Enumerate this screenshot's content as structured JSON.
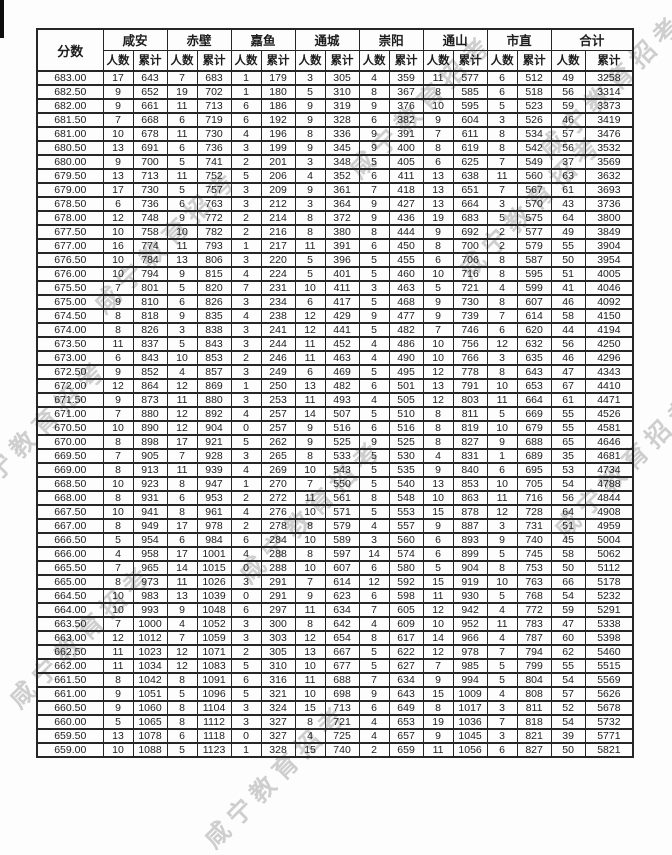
{
  "page": {
    "watermark_text": "咸宁教育招考"
  },
  "colors": {
    "ink": "#1c1c1c",
    "table_border": "#262626",
    "watermark": "#8f8f8f",
    "page_bg": "#fdfdfd"
  },
  "table": {
    "score_header": "分数",
    "regions": [
      "咸安",
      "赤壁",
      "嘉鱼",
      "通城",
      "崇阳",
      "通山",
      "市直",
      "合计"
    ],
    "sub_headers": {
      "count": "人数",
      "cumulative": "累计"
    },
    "rows": [
      [
        "683.00",
        17,
        643,
        7,
        683,
        1,
        179,
        3,
        305,
        4,
        359,
        11,
        577,
        6,
        512,
        49,
        3258
      ],
      [
        "682.50",
        9,
        652,
        19,
        702,
        1,
        180,
        5,
        310,
        8,
        367,
        8,
        585,
        6,
        518,
        56,
        3314
      ],
      [
        "682.00",
        9,
        661,
        11,
        713,
        6,
        186,
        9,
        319,
        9,
        376,
        10,
        595,
        5,
        523,
        59,
        3373
      ],
      [
        "681.50",
        7,
        668,
        6,
        719,
        6,
        192,
        9,
        328,
        6,
        382,
        9,
        604,
        3,
        526,
        46,
        3419
      ],
      [
        "681.00",
        10,
        678,
        11,
        730,
        4,
        196,
        8,
        336,
        9,
        391,
        7,
        611,
        8,
        534,
        57,
        3476
      ],
      [
        "680.50",
        13,
        691,
        6,
        736,
        3,
        199,
        9,
        345,
        9,
        400,
        8,
        619,
        8,
        542,
        56,
        3532
      ],
      [
        "680.00",
        9,
        700,
        5,
        741,
        2,
        201,
        3,
        348,
        5,
        405,
        6,
        625,
        7,
        549,
        37,
        3569
      ],
      [
        "679.50",
        13,
        713,
        11,
        752,
        5,
        206,
        4,
        352,
        6,
        411,
        13,
        638,
        11,
        560,
        63,
        3632
      ],
      [
        "679.00",
        17,
        730,
        5,
        757,
        3,
        209,
        9,
        361,
        7,
        418,
        13,
        651,
        7,
        567,
        61,
        3693
      ],
      [
        "678.50",
        6,
        736,
        6,
        763,
        3,
        212,
        3,
        364,
        9,
        427,
        13,
        664,
        3,
        570,
        43,
        3736
      ],
      [
        "678.00",
        12,
        748,
        9,
        772,
        2,
        214,
        8,
        372,
        9,
        436,
        19,
        683,
        5,
        575,
        64,
        3800
      ],
      [
        "677.50",
        10,
        758,
        10,
        782,
        2,
        216,
        8,
        380,
        8,
        444,
        9,
        692,
        2,
        577,
        49,
        3849
      ],
      [
        "677.00",
        16,
        774,
        11,
        793,
        1,
        217,
        11,
        391,
        6,
        450,
        8,
        700,
        2,
        579,
        55,
        3904
      ],
      [
        "676.50",
        10,
        784,
        13,
        806,
        3,
        220,
        5,
        396,
        5,
        455,
        6,
        706,
        8,
        587,
        50,
        3954
      ],
      [
        "676.00",
        10,
        794,
        9,
        815,
        4,
        224,
        5,
        401,
        5,
        460,
        10,
        716,
        8,
        595,
        51,
        4005
      ],
      [
        "675.50",
        7,
        801,
        5,
        820,
        7,
        231,
        10,
        411,
        3,
        463,
        5,
        721,
        4,
        599,
        41,
        4046
      ],
      [
        "675.00",
        9,
        810,
        6,
        826,
        3,
        234,
        6,
        417,
        5,
        468,
        9,
        730,
        8,
        607,
        46,
        4092
      ],
      [
        "674.50",
        8,
        818,
        9,
        835,
        4,
        238,
        12,
        429,
        9,
        477,
        9,
        739,
        7,
        614,
        58,
        4150
      ],
      [
        "674.00",
        8,
        826,
        3,
        838,
        3,
        241,
        12,
        441,
        5,
        482,
        7,
        746,
        6,
        620,
        44,
        4194
      ],
      [
        "673.50",
        11,
        837,
        5,
        843,
        3,
        244,
        11,
        452,
        4,
        486,
        10,
        756,
        12,
        632,
        56,
        4250
      ],
      [
        "673.00",
        6,
        843,
        10,
        853,
        2,
        246,
        11,
        463,
        4,
        490,
        10,
        766,
        3,
        635,
        46,
        4296
      ],
      [
        "672.50",
        9,
        852,
        4,
        857,
        3,
        249,
        6,
        469,
        5,
        495,
        12,
        778,
        8,
        643,
        47,
        4343
      ],
      [
        "672.00",
        12,
        864,
        12,
        869,
        1,
        250,
        13,
        482,
        6,
        501,
        13,
        791,
        10,
        653,
        67,
        4410
      ],
      [
        "671.50",
        9,
        873,
        11,
        880,
        3,
        253,
        11,
        493,
        4,
        505,
        12,
        803,
        11,
        664,
        61,
        4471
      ],
      [
        "671.00",
        7,
        880,
        12,
        892,
        4,
        257,
        14,
        507,
        5,
        510,
        8,
        811,
        5,
        669,
        55,
        4526
      ],
      [
        "670.50",
        10,
        890,
        12,
        904,
        0,
        257,
        9,
        516,
        6,
        516,
        8,
        819,
        10,
        679,
        55,
        4581
      ],
      [
        "670.00",
        8,
        898,
        17,
        921,
        5,
        262,
        9,
        525,
        9,
        525,
        8,
        827,
        9,
        688,
        65,
        4646
      ],
      [
        "669.50",
        7,
        905,
        7,
        928,
        3,
        265,
        8,
        533,
        5,
        530,
        4,
        831,
        1,
        689,
        35,
        4681
      ],
      [
        "669.00",
        8,
        913,
        11,
        939,
        4,
        269,
        10,
        543,
        5,
        535,
        9,
        840,
        6,
        695,
        53,
        4734
      ],
      [
        "668.50",
        10,
        923,
        8,
        947,
        1,
        270,
        7,
        550,
        5,
        540,
        13,
        853,
        10,
        705,
        54,
        4788
      ],
      [
        "668.00",
        8,
        931,
        6,
        953,
        2,
        272,
        11,
        561,
        8,
        548,
        10,
        863,
        11,
        716,
        56,
        4844
      ],
      [
        "667.50",
        10,
        941,
        8,
        961,
        4,
        276,
        10,
        571,
        5,
        553,
        15,
        878,
        12,
        728,
        64,
        4908
      ],
      [
        "667.00",
        8,
        949,
        17,
        978,
        2,
        278,
        8,
        579,
        4,
        557,
        9,
        887,
        3,
        731,
        51,
        4959
      ],
      [
        "666.50",
        5,
        954,
        6,
        984,
        6,
        284,
        10,
        589,
        3,
        560,
        6,
        893,
        9,
        740,
        45,
        5004
      ],
      [
        "666.00",
        4,
        958,
        17,
        1001,
        4,
        288,
        8,
        597,
        14,
        574,
        6,
        899,
        5,
        745,
        58,
        5062
      ],
      [
        "665.50",
        7,
        965,
        14,
        1015,
        0,
        288,
        10,
        607,
        6,
        580,
        5,
        904,
        8,
        753,
        50,
        5112
      ],
      [
        "665.00",
        8,
        973,
        11,
        1026,
        3,
        291,
        7,
        614,
        12,
        592,
        15,
        919,
        10,
        763,
        66,
        5178
      ],
      [
        "664.50",
        10,
        983,
        13,
        1039,
        0,
        291,
        9,
        623,
        6,
        598,
        11,
        930,
        5,
        768,
        54,
        5232
      ],
      [
        "664.00",
        10,
        993,
        9,
        1048,
        6,
        297,
        11,
        634,
        7,
        605,
        12,
        942,
        4,
        772,
        59,
        5291
      ],
      [
        "663.50",
        7,
        1000,
        4,
        1052,
        3,
        300,
        8,
        642,
        4,
        609,
        10,
        952,
        11,
        783,
        47,
        5338
      ],
      [
        "663.00",
        12,
        1012,
        7,
        1059,
        3,
        303,
        12,
        654,
        8,
        617,
        14,
        966,
        4,
        787,
        60,
        5398
      ],
      [
        "662.50",
        11,
        1023,
        12,
        1071,
        2,
        305,
        13,
        667,
        5,
        622,
        12,
        978,
        7,
        794,
        62,
        5460
      ],
      [
        "662.00",
        11,
        1034,
        12,
        1083,
        5,
        310,
        10,
        677,
        5,
        627,
        7,
        985,
        5,
        799,
        55,
        5515
      ],
      [
        "661.50",
        8,
        1042,
        8,
        1091,
        6,
        316,
        11,
        688,
        7,
        634,
        9,
        994,
        5,
        804,
        54,
        5569
      ],
      [
        "661.00",
        9,
        1051,
        5,
        1096,
        5,
        321,
        10,
        698,
        9,
        643,
        15,
        1009,
        4,
        808,
        57,
        5626
      ],
      [
        "660.50",
        9,
        1060,
        8,
        1104,
        3,
        324,
        15,
        713,
        6,
        649,
        8,
        1017,
        3,
        811,
        52,
        5678
      ],
      [
        "660.00",
        5,
        1065,
        8,
        1112,
        3,
        327,
        8,
        721,
        4,
        653,
        19,
        1036,
        7,
        818,
        54,
        5732
      ],
      [
        "659.50",
        13,
        1078,
        6,
        1118,
        0,
        327,
        4,
        725,
        4,
        657,
        9,
        1045,
        3,
        821,
        39,
        5771
      ],
      [
        "659.00",
        10,
        1088,
        5,
        1123,
        1,
        328,
        15,
        740,
        2,
        659,
        11,
        1056,
        6,
        827,
        50,
        5821
      ]
    ]
  }
}
